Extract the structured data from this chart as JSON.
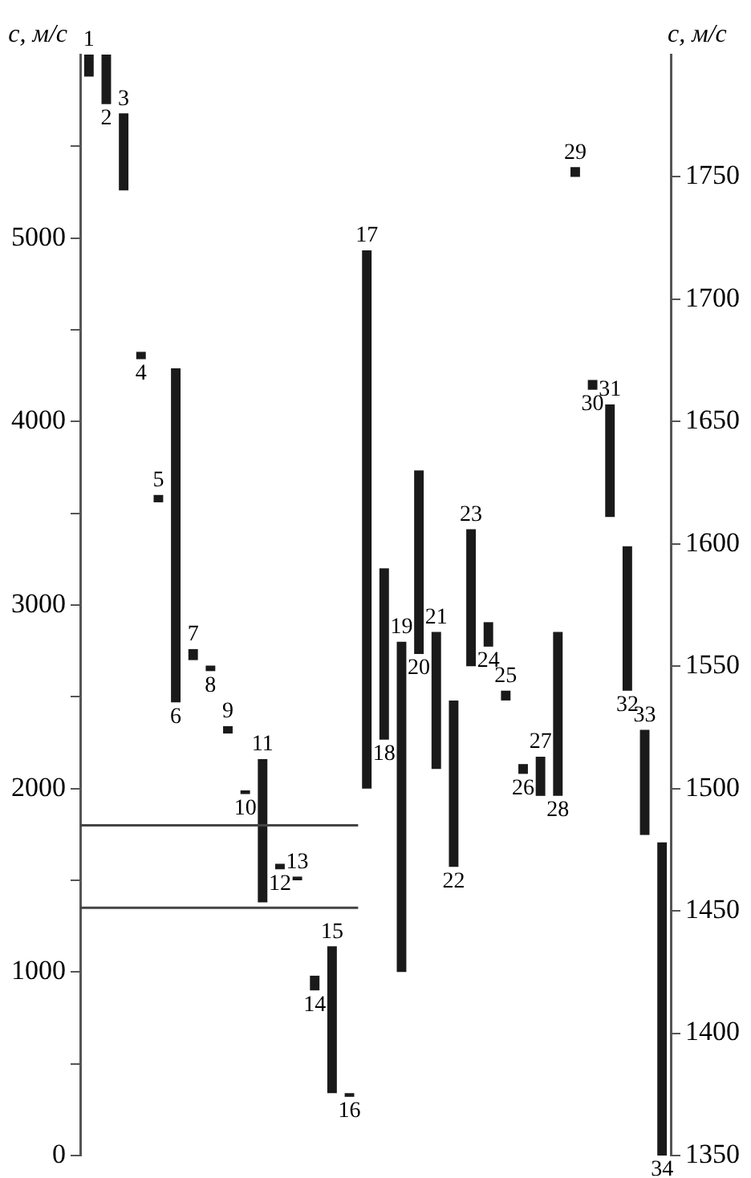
{
  "chart_data": {
    "type": "bar",
    "ylabel": "c, м/с",
    "y2label": "c, м/с",
    "categories": [
      "1",
      "2",
      "3",
      "4",
      "5",
      "6",
      "7",
      "8",
      "9",
      "10",
      "11",
      "12",
      "13",
      "14",
      "15",
      "16",
      "17",
      "18",
      "19",
      "20",
      "21",
      "22",
      "23",
      "24",
      "25",
      "26",
      "27",
      "28",
      "29",
      "30",
      "31",
      "32",
      "33",
      "34"
    ],
    "series": [
      {
        "color": "#1a1a1a",
        "axis": "y",
        "base": [
          5880,
          5730,
          5260,
          4340,
          3560,
          2470,
          2700,
          2640,
          2300,
          1970,
          1380,
          1560,
          1500,
          900,
          340,
          320,
          null,
          null,
          null,
          null,
          null,
          null,
          null,
          null,
          null,
          null,
          null,
          null,
          null,
          null,
          null,
          null,
          null,
          null
        ],
        "values": [
          120,
          270,
          420,
          40,
          40,
          1820,
          60,
          30,
          40,
          20,
          780,
          30,
          20,
          80,
          800,
          20,
          null,
          null,
          null,
          null,
          null,
          null,
          null,
          null,
          null,
          null,
          null,
          null,
          null,
          null,
          null,
          null,
          null,
          null
        ]
      },
      {
        "color": "#1a1a1a",
        "axis": "y2",
        "base": [
          null,
          null,
          null,
          null,
          null,
          null,
          null,
          null,
          null,
          null,
          null,
          null,
          null,
          null,
          null,
          null,
          1500,
          1520,
          1425,
          1555,
          1508,
          1468,
          1550,
          1558,
          1536,
          1506,
          1497,
          1497,
          1750,
          1663,
          1611,
          1540,
          1481,
          1350
        ],
        "values": [
          null,
          null,
          null,
          null,
          null,
          null,
          null,
          null,
          null,
          null,
          null,
          null,
          null,
          null,
          null,
          null,
          220,
          70,
          135,
          75,
          56,
          68,
          56,
          10,
          4,
          4,
          16,
          67,
          4,
          4,
          46,
          59,
          43,
          128
        ]
      }
    ],
    "ylim": [
      0,
      6000
    ],
    "yticks": [
      0,
      {
        "value": 500,
        "label": null
      },
      1000,
      {
        "value": 1500,
        "label": null
      },
      2000,
      {
        "value": 2500,
        "label": null
      },
      3000,
      {
        "value": 3500,
        "label": null
      },
      4000,
      {
        "value": 4500,
        "label": null
      },
      5000,
      {
        "value": 5500,
        "label": null
      }
    ],
    "y2lim": [
      1350,
      1800
    ],
    "y2ticks": [
      1350,
      1400,
      1450,
      1500,
      1550,
      1600,
      1650,
      1700,
      1750
    ],
    "ref_lines": [
      {
        "axis": "y",
        "value": 1800,
        "label": null,
        "color": "#444444"
      },
      {
        "axis": "y",
        "value": 1350,
        "label": null,
        "color": "#444444"
      }
    ],
    "grid": false,
    "legend": false
  }
}
